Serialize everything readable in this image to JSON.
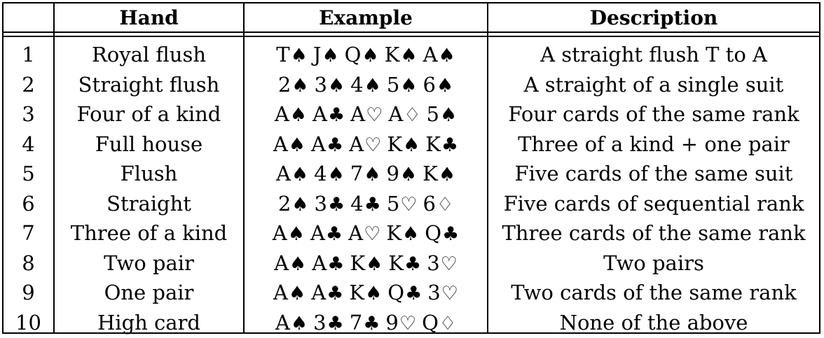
{
  "headers": [
    "",
    "Hand",
    "Example",
    "Description"
  ],
  "rows": [
    {
      "num": "1",
      "hand": "Royal flush",
      "cards": [
        [
          "T",
          "♠"
        ],
        [
          "J",
          "♠"
        ],
        [
          "Q",
          "♠"
        ],
        [
          "K",
          "♠"
        ],
        [
          "A",
          "♠"
        ]
      ],
      "desc": "A straight flush T to A"
    },
    {
      "num": "2",
      "hand": "Straight flush",
      "cards": [
        [
          "2",
          "♠"
        ],
        [
          "3",
          "♠"
        ],
        [
          "4",
          "♠"
        ],
        [
          "5",
          "♠"
        ],
        [
          "6",
          "♠"
        ]
      ],
      "desc": "A straight of a single suit"
    },
    {
      "num": "3",
      "hand": "Four of a kind",
      "cards": [
        [
          "A",
          "♠"
        ],
        [
          "A",
          "♣"
        ],
        [
          "A",
          "♡"
        ],
        [
          "A",
          "♢"
        ],
        [
          "5",
          "♠"
        ]
      ],
      "desc": "Four cards of the same rank"
    },
    {
      "num": "4",
      "hand": "Full house",
      "cards": [
        [
          "A",
          "♠"
        ],
        [
          "A",
          "♣"
        ],
        [
          "A",
          "♡"
        ],
        [
          "K",
          "♠"
        ],
        [
          "K",
          "♣"
        ]
      ],
      "desc": "Three of a kind + one pair"
    },
    {
      "num": "5",
      "hand": "Flush",
      "cards": [
        [
          "A",
          "♠"
        ],
        [
          "4",
          "♠"
        ],
        [
          "7",
          "♠"
        ],
        [
          "9",
          "♠"
        ],
        [
          "K",
          "♠"
        ]
      ],
      "desc": "Five cards of the same suit"
    },
    {
      "num": "6",
      "hand": "Straight",
      "cards": [
        [
          "2",
          "♠"
        ],
        [
          "3",
          "♣"
        ],
        [
          "4",
          "♣"
        ],
        [
          "5",
          "♡"
        ],
        [
          "6",
          "♢"
        ]
      ],
      "desc": "Five cards of sequential rank"
    },
    {
      "num": "7",
      "hand": "Three of a kind",
      "cards": [
        [
          "A",
          "♠"
        ],
        [
          "A",
          "♣"
        ],
        [
          "A",
          "♡"
        ],
        [
          "K",
          "♠"
        ],
        [
          "Q",
          "♣"
        ]
      ],
      "desc": "Three cards of the same rank"
    },
    {
      "num": "8",
      "hand": "Two pair",
      "cards": [
        [
          "A",
          "♠"
        ],
        [
          "A",
          "♣"
        ],
        [
          "K",
          "♠"
        ],
        [
          "K",
          "♣"
        ],
        [
          "3",
          "♡"
        ]
      ],
      "desc": "Two pairs"
    },
    {
      "num": "9",
      "hand": "One pair",
      "cards": [
        [
          "A",
          "♠"
        ],
        [
          "A",
          "♣"
        ],
        [
          "K",
          "♠"
        ],
        [
          "Q",
          "♣"
        ],
        [
          "3",
          "♡"
        ]
      ],
      "desc": "Two cards of the same rank"
    },
    {
      "num": "10",
      "hand": "High card",
      "cards": [
        [
          "A",
          "♠"
        ],
        [
          "3",
          "♣"
        ],
        [
          "7",
          "♣"
        ],
        [
          "9",
          "♡"
        ],
        [
          "Q",
          "♢"
        ]
      ],
      "desc": "None of the above"
    }
  ]
}
